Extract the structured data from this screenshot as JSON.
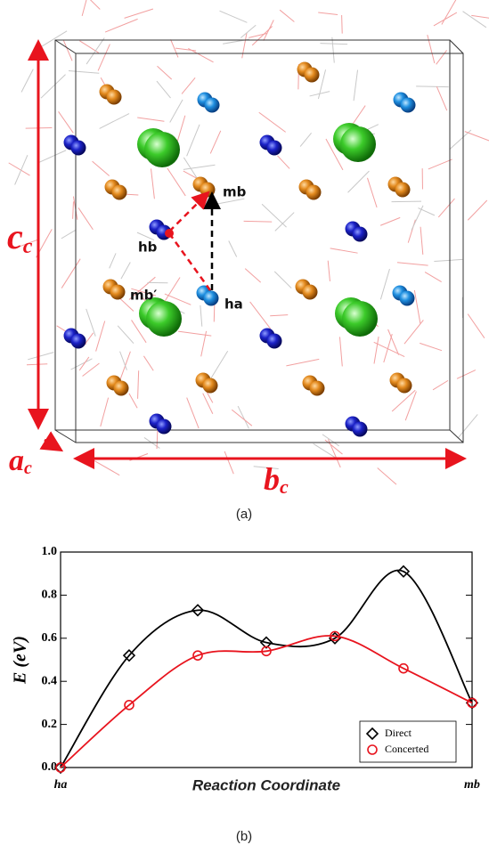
{
  "structure": {
    "axes": {
      "c": {
        "symbol": "c",
        "subscript": "c"
      },
      "a": {
        "symbol": "a",
        "subscript": "c"
      },
      "b": {
        "symbol": "b",
        "subscript": "c"
      }
    },
    "sites": {
      "hb": "hb",
      "mb": "mb",
      "ha": "ha",
      "mb_prime": "mb′"
    },
    "caption": "(a)"
  },
  "chart_data": {
    "type": "line",
    "ylabel": "E (eV)",
    "xlabel": "Reaction Coordinate",
    "categories": [
      "ha",
      null,
      null,
      null,
      null,
      null,
      "mb"
    ],
    "series": [
      {
        "name": "Direct",
        "color": "#000000",
        "marker": "diamond",
        "values": [
          0,
          0.52,
          0.73,
          0.58,
          0.6,
          0.91,
          0.3
        ]
      },
      {
        "name": "Concerted",
        "color": "#e8141e",
        "marker": "circle",
        "values": [
          0,
          0.29,
          0.52,
          0.54,
          0.61,
          0.46,
          0.3
        ]
      }
    ],
    "ylim": [
      0,
      1
    ],
    "yticks": [
      {
        "value": 0,
        "label": "0.0"
      },
      0.2,
      0.4,
      0.6,
      0.8,
      {
        "value": 1,
        "label": "1.0"
      }
    ],
    "legend": "lower right",
    "caption": "(b)"
  }
}
